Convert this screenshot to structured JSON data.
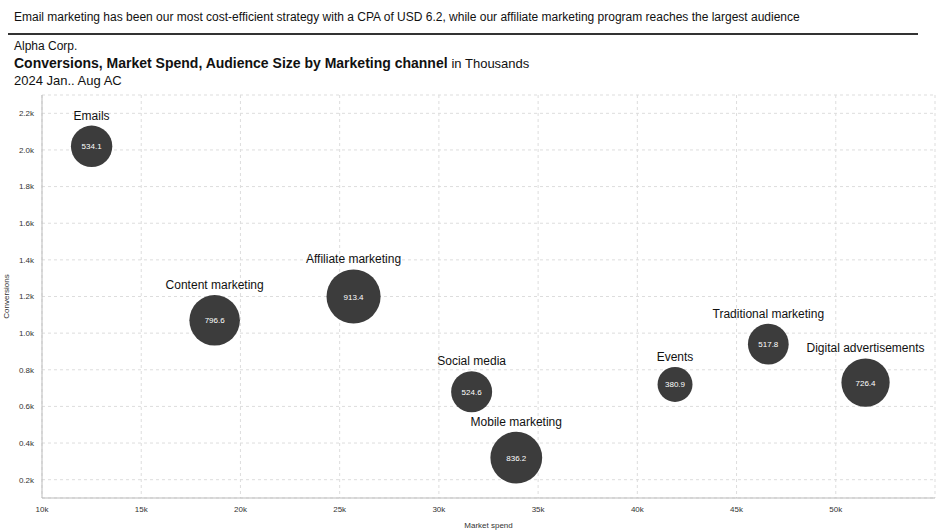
{
  "chart_data": {
    "type": "scatter",
    "headline": "Email marketing has been our most cost-efficient strategy with a CPA of USD 6.2, while our affiliate marketing program reaches the largest audience",
    "company": "Alpha Corp.",
    "title": "Conversions, Market Spend, Audience Size by Marketing channel",
    "title_unit": "in Thousands",
    "subtitle": "2024 Jan.. Aug AC",
    "x_label": "Market spend",
    "y_label": "Conversions",
    "categories": [
      "Emails",
      "Content marketing",
      "Affiliate marketing",
      "Social media",
      "Mobile marketing",
      "Events",
      "Traditional marketing",
      "Digital advertisements"
    ],
    "x": [
      12500,
      18700,
      25700,
      31650,
      33900,
      41900,
      46600,
      51500
    ],
    "values": [
      2020,
      1070,
      1200,
      680,
      320,
      720,
      940,
      730
    ],
    "sizes": [
      534.1,
      796.6,
      913.4,
      524.6,
      836.2,
      380.9,
      517.8,
      726.4
    ],
    "color": "#3c3c3c",
    "marker": "circle",
    "data_labels": true,
    "grid": true,
    "xlim": [
      10000,
      55000
    ],
    "xticks": [
      {
        "value": 10000,
        "label": "10k"
      },
      {
        "value": 15000,
        "label": "15k"
      },
      {
        "value": 20000,
        "label": "20k"
      },
      {
        "value": 25000,
        "label": "25k"
      },
      {
        "value": 30000,
        "label": "30k"
      },
      {
        "value": 35000,
        "label": "35k"
      },
      {
        "value": 40000,
        "label": "40k"
      },
      {
        "value": 45000,
        "label": "45k"
      },
      {
        "value": 50000,
        "label": "50k"
      }
    ],
    "ylim": [
      100,
      2300
    ],
    "yticks": [
      {
        "value": 200,
        "label": "0.2k"
      },
      {
        "value": 400,
        "label": "0.4k"
      },
      {
        "value": 600,
        "label": "0.6k"
      },
      {
        "value": 800,
        "label": "0.8k"
      },
      {
        "value": 1000,
        "label": "1.0k"
      },
      {
        "value": 1200,
        "label": "1.2k"
      },
      {
        "value": 1400,
        "label": "1.4k"
      },
      {
        "value": 1600,
        "label": "1.6k"
      },
      {
        "value": 1800,
        "label": "1.8k"
      },
      {
        "value": 2000,
        "label": "2.0k"
      },
      {
        "value": 2200,
        "label": "2.2k"
      }
    ]
  }
}
